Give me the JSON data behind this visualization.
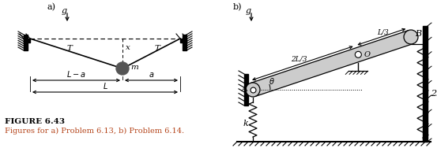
{
  "fig_width": 5.53,
  "fig_height": 2.02,
  "dpi": 100,
  "background": "#ffffff",
  "label_a": "a)",
  "label_b": "b)",
  "figure_label": "FIGURE 6.43",
  "caption": "Figures for a) Problem 6.13, b) Problem 6.14.",
  "caption_color": "#b5451b",
  "mass_color": "#555555",
  "beam_fill": "#cccccc"
}
